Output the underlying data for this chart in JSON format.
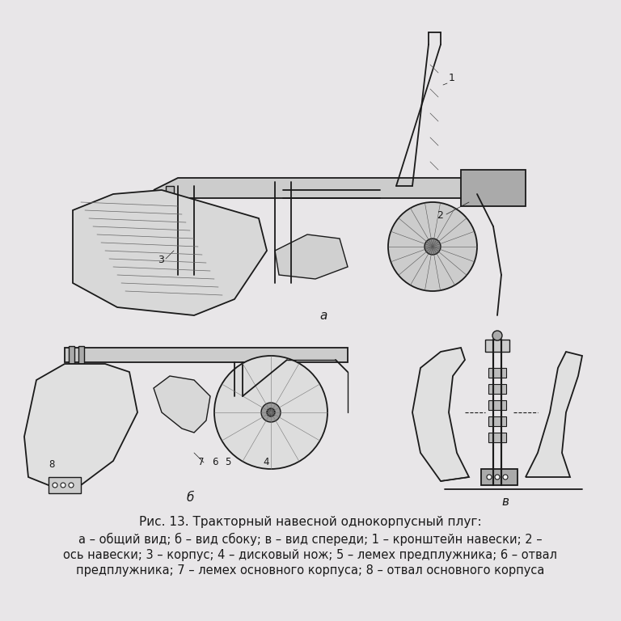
{
  "title": "Рис. 13. Тракторный навесной однокорпусный плуг:",
  "caption_lines": [
    "а – общий вид; б – вид сбоку; в – вид спереди; 1 – кронштейн навески; 2 –",
    "ось навески; 3 – корпус; 4 – дисковый нож; 5 – лемех предплужника; 6 – отвал",
    "предплужника; 7 – лемех основного корпуса; 8 – отвал основного корпуса"
  ],
  "label_a": "а",
  "label_b": "б",
  "label_v": "в",
  "bg_color": "#e8e6e8",
  "fig_width": 7.68,
  "fig_height": 7.68,
  "dpi": 100,
  "title_fontsize": 11,
  "caption_fontsize": 10.5,
  "label_fontsize": 11
}
